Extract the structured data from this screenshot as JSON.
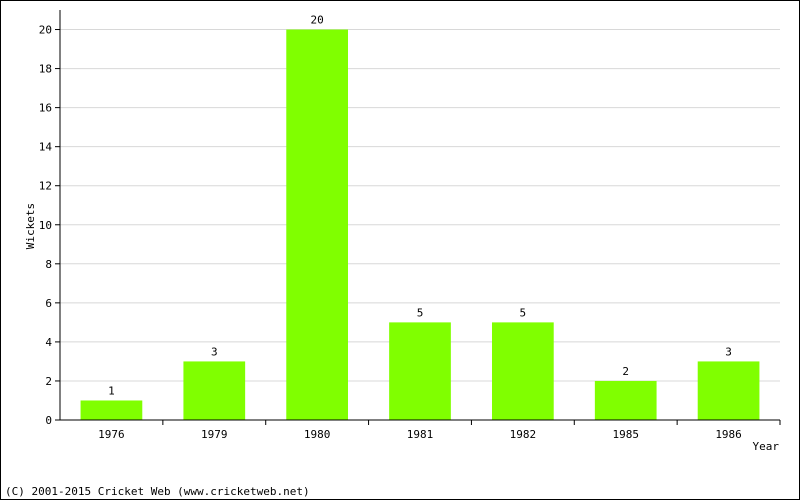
{
  "chart_data": {
    "type": "bar",
    "categories": [
      "1976",
      "1979",
      "1980",
      "1981",
      "1982",
      "1985",
      "1986"
    ],
    "values": [
      1,
      3,
      20,
      5,
      5,
      2,
      3
    ],
    "color": "#80ff00",
    "y_label": "Wickets",
    "x_label": "Year",
    "ylim": [
      0,
      21
    ],
    "yticks": [
      0,
      2,
      4,
      6,
      8,
      10,
      12,
      14,
      16,
      18,
      20
    ],
    "grid": true
  },
  "footer": "(C) 2001-2015 Cricket Web (www.cricketweb.net)"
}
